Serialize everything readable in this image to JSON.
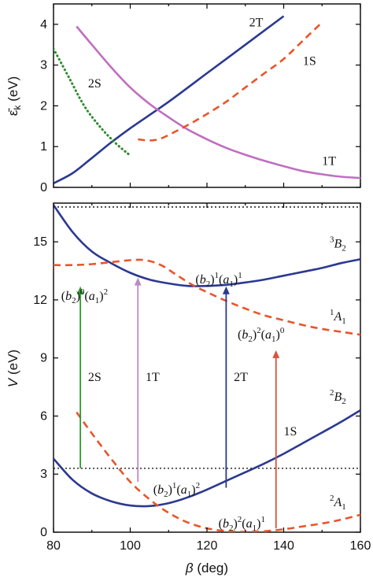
{
  "chart_data": [
    {
      "type": "line",
      "panel": "top",
      "ylabel": "ε̄k (eV)",
      "xlim": [
        80,
        160
      ],
      "ylim": [
        0,
        4.5
      ],
      "yticks": [
        0,
        1,
        2,
        3,
        4
      ],
      "series": [
        {
          "name": "2T",
          "style": "solid",
          "color": "#2b3990",
          "x": [
            80,
            85,
            90,
            95,
            100,
            110,
            120,
            130,
            140
          ],
          "y": [
            0.1,
            0.35,
            0.72,
            1.1,
            1.45,
            2.1,
            2.8,
            3.5,
            4.2
          ]
        },
        {
          "name": "1T",
          "style": "solid",
          "color": "#bf6fbf",
          "x": [
            86,
            90,
            95,
            100,
            105,
            110,
            115,
            120,
            125,
            130,
            135,
            140,
            145,
            150,
            155,
            160
          ],
          "y": [
            3.95,
            3.5,
            2.95,
            2.45,
            2.05,
            1.72,
            1.42,
            1.18,
            0.97,
            0.8,
            0.65,
            0.52,
            0.4,
            0.32,
            0.26,
            0.23
          ]
        },
        {
          "name": "2S",
          "style": "dotted",
          "color": "#2e8b2e",
          "x": [
            80,
            84,
            88,
            92,
            96,
            100
          ],
          "y": [
            3.4,
            2.7,
            2.0,
            1.5,
            1.1,
            0.78
          ]
        },
        {
          "name": "1S",
          "style": "dashed",
          "color": "#e8552a",
          "x": [
            102,
            105,
            108,
            112,
            116,
            120,
            125,
            130,
            135,
            140,
            145,
            150
          ],
          "y": [
            1.18,
            1.15,
            1.2,
            1.38,
            1.58,
            1.8,
            2.1,
            2.45,
            2.8,
            3.15,
            3.6,
            4.05
          ]
        }
      ],
      "labels": [
        {
          "text": "2T",
          "x": 131,
          "y": 3.95
        },
        {
          "text": "1S",
          "x": 145,
          "y": 3.0
        },
        {
          "text": "2S",
          "x": 89,
          "y": 2.45
        },
        {
          "text": "1T",
          "x": 150,
          "y": 0.55
        }
      ]
    },
    {
      "type": "line",
      "panel": "bottom",
      "xlabel": "β (deg)",
      "ylabel": "V (eV)",
      "xlim": [
        80,
        160
      ],
      "ylim": [
        0,
        17
      ],
      "xticks": [
        80,
        100,
        120,
        140,
        160
      ],
      "yticks": [
        0,
        3,
        6,
        9,
        12,
        15
      ],
      "hlines": [
        16.8,
        3.3
      ],
      "series": [
        {
          "name": "3B2",
          "style": "solid",
          "color": "#2b3990",
          "x": [
            80,
            85,
            90,
            95,
            100,
            105,
            110,
            115,
            120,
            125,
            130,
            135,
            140,
            145,
            150,
            155,
            160
          ],
          "y": [
            16.9,
            15.5,
            14.5,
            13.9,
            13.4,
            13.05,
            12.85,
            12.72,
            12.72,
            12.78,
            12.9,
            13.05,
            13.25,
            13.45,
            13.65,
            13.9,
            14.1
          ]
        },
        {
          "name": "1A1",
          "style": "dashed",
          "color": "#e8552a",
          "x": [
            80,
            85,
            90,
            95,
            100,
            104,
            108,
            112,
            116,
            120,
            125,
            130,
            135,
            140,
            145,
            150,
            155,
            160
          ],
          "y": [
            13.8,
            13.8,
            13.85,
            13.95,
            14.05,
            14.05,
            13.8,
            13.3,
            12.8,
            12.4,
            11.95,
            11.55,
            11.2,
            10.95,
            10.7,
            10.5,
            10.35,
            10.2
          ]
        },
        {
          "name": "2B2",
          "style": "solid",
          "color": "#2b3990",
          "x": [
            80,
            85,
            90,
            95,
            100,
            105,
            110,
            115,
            120,
            125,
            130,
            135,
            140,
            145,
            150,
            155,
            160
          ],
          "y": [
            3.8,
            2.7,
            2.0,
            1.6,
            1.38,
            1.35,
            1.5,
            1.8,
            2.2,
            2.65,
            3.1,
            3.55,
            4.05,
            4.6,
            5.15,
            5.7,
            6.3
          ]
        },
        {
          "name": "2A1",
          "style": "dashed",
          "color": "#e8552a",
          "x": [
            86,
            90,
            95,
            100,
            105,
            110,
            115,
            120,
            125,
            130,
            135,
            140,
            145,
            150,
            155,
            160
          ],
          "y": [
            6.2,
            5.1,
            3.8,
            2.6,
            1.7,
            1.0,
            0.5,
            0.2,
            0.06,
            0.02,
            0.05,
            0.15,
            0.3,
            0.45,
            0.65,
            0.9
          ]
        }
      ],
      "arrows": [
        {
          "name": "2S",
          "x": 87,
          "y0": 3.3,
          "y1": 12.7,
          "color": "#2e9a2e"
        },
        {
          "name": "1T",
          "x": 102,
          "y0": 2.6,
          "y1": 13.15,
          "color": "#b98ac9"
        },
        {
          "name": "2T",
          "x": 125,
          "y0": 2.3,
          "y1": 12.7,
          "color": "#2b3990"
        },
        {
          "name": "1S",
          "x": 138,
          "y0": 0.2,
          "y1": 9.4,
          "color": "#d9533a"
        }
      ],
      "labels": [
        {
          "text": "(b2)⁰(a1)²",
          "x": 82,
          "y": 12.0
        },
        {
          "text": "(b2)¹(a1)¹",
          "x": 117,
          "y": 12.85
        },
        {
          "text": "(b2)²(a1)⁰",
          "x": 128,
          "y": 10.0
        },
        {
          "text": "(b2)¹(a1)²",
          "x": 106,
          "y": 2.0
        },
        {
          "text": "(b2)²(a1)¹",
          "x": 123,
          "y": 0.25
        },
        {
          "text": "³B2",
          "x": 152,
          "y": 14.7
        },
        {
          "text": "¹A1",
          "x": 152,
          "y": 10.95
        },
        {
          "text": "²B2",
          "x": 152,
          "y": 6.8
        },
        {
          "text": "²A1",
          "x": 152,
          "y": 1.35
        },
        {
          "text": "2S",
          "x": 89,
          "y": 7.8
        },
        {
          "text": "1T",
          "x": 104,
          "y": 7.8
        },
        {
          "text": "2T",
          "x": 127,
          "y": 7.8
        },
        {
          "text": "1S",
          "x": 140,
          "y": 5.0
        }
      ]
    }
  ]
}
